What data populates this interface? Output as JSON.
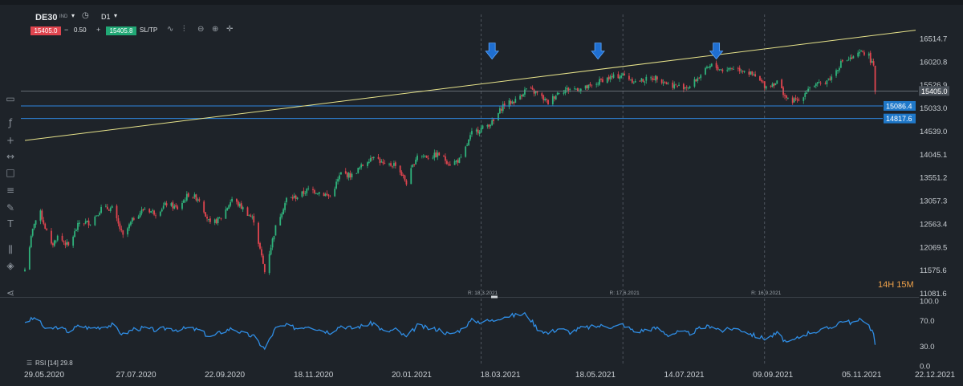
{
  "toolbar": {
    "symbol": "DE30",
    "symbol_suffix": "IND",
    "timeframe": "D1",
    "sell_price": "15405.0",
    "quantity_minus": "−",
    "quantity": "0.50",
    "quantity_plus": "+",
    "buy_price": "15405.8",
    "sltp_label": "SL/TP",
    "icons": [
      "chart-type-icon",
      "indicators-icon",
      "zoom-out-icon",
      "zoom-in-icon",
      "crosshair-icon"
    ]
  },
  "sidebar": {
    "icons": [
      "comment-icon",
      "function-icon",
      "crosshair-plus-icon",
      "ruler-icon",
      "rectangle-icon",
      "fibonacci-icon",
      "pencil-icon",
      "text-icon",
      "settings-sliders-icon",
      "layers-icon",
      "share-icon"
    ]
  },
  "price_axis": {
    "ticks": [
      "16514.7",
      "16020.8",
      "15526.9",
      "15033.0",
      "14539.0",
      "14045.1",
      "13551.2",
      "13057.3",
      "12563.4",
      "12069.5",
      "11575.6",
      "11081.6"
    ],
    "current_price_label": "15405.0",
    "level_labels": [
      "15086.4",
      "14817.6"
    ]
  },
  "time_to_close": "14H 15M",
  "rsi_axis": {
    "ticks": [
      "100.0",
      "70.0",
      "30.0",
      "0.0"
    ],
    "label": "RSI [14] 29.8"
  },
  "date_axis": {
    "ticks": [
      "29.05.2020",
      "27.07.2020",
      "22.09.2020",
      "18.11.2020",
      "20.01.2021",
      "18.03.2021",
      "18.05.2021",
      "14.07.2021",
      "09.09.2021",
      "05.11.2021",
      "22.12.2021"
    ]
  },
  "markers": [
    "R: 18.3.2021",
    "R: 17.6.2021",
    "R: 16.9.2021"
  ],
  "colors": {
    "background": "#1e2329",
    "bull": "#2fb27b",
    "bear": "#e0454f",
    "trendline": "#e6e28a",
    "level_line": "#2e86de",
    "rsi_line": "#2f8de4",
    "arrow": "#1f6fd1",
    "time_to_close": "#f0a24a"
  },
  "chart_data": [
    {
      "type": "candlestick",
      "symbol": "DE30",
      "timeframe": "D1",
      "ylim": [
        11081.6,
        16700
      ],
      "x_start": "29.05.2020",
      "x_end": "22.12.2021",
      "series": [
        {
          "name": "DE30",
          "close_path": [
            [
              "29.05.2020",
              11600
            ],
            [
              "04.06.2020",
              12600
            ],
            [
              "08.06.2020",
              12800
            ],
            [
              "15.06.2020",
              12100
            ],
            [
              "19.06.2020",
              12300
            ],
            [
              "26.06.2020",
              12100
            ],
            [
              "03.07.2020",
              12600
            ],
            [
              "10.07.2020",
              12600
            ],
            [
              "17.07.2020",
              12900
            ],
            [
              "24.07.2020",
              12900
            ],
            [
              "31.07.2020",
              12300
            ],
            [
              "07.08.2020",
              12700
            ],
            [
              "14.08.2020",
              12900
            ],
            [
              "21.08.2020",
              12800
            ],
            [
              "28.08.2020",
              13000
            ],
            [
              "04.09.2020",
              12900
            ],
            [
              "11.09.2020",
              13200
            ],
            [
              "18.09.2020",
              13100
            ],
            [
              "25.09.2020",
              12550
            ],
            [
              "02.10.2020",
              12700
            ],
            [
              "09.10.2020",
              13100
            ],
            [
              "16.10.2020",
              12900
            ],
            [
              "23.10.2020",
              12650
            ],
            [
              "30.10.2020",
              11550
            ],
            [
              "06.11.2020",
              12500
            ],
            [
              "13.11.2020",
              13100
            ],
            [
              "20.11.2020",
              13150
            ],
            [
              "27.11.2020",
              13300
            ],
            [
              "04.12.2020",
              13250
            ],
            [
              "11.12.2020",
              13150
            ],
            [
              "18.12.2020",
              13650
            ],
            [
              "25.12.2020",
              13600
            ],
            [
              "08.01.2021",
              14050
            ],
            [
              "15.01.2021",
              13800
            ],
            [
              "22.01.2021",
              13850
            ],
            [
              "29.01.2021",
              13450
            ],
            [
              "05.02.2021",
              14050
            ],
            [
              "12.02.2021",
              14000
            ],
            [
              "19.02.2021",
              14050
            ],
            [
              "26.02.2021",
              13850
            ],
            [
              "05.03.2021",
              13950
            ],
            [
              "12.03.2021",
              14500
            ],
            [
              "18.03.2021",
              14600
            ],
            [
              "26.03.2021",
              14750
            ],
            [
              "01.04.2021",
              15100
            ],
            [
              "09.04.2021",
              15200
            ],
            [
              "16.04.2021",
              15450
            ],
            [
              "23.04.2021",
              15350
            ],
            [
              "30.04.2021",
              15150
            ],
            [
              "07.05.2021",
              15400
            ],
            [
              "14.05.2021",
              15450
            ],
            [
              "21.05.2021",
              15450
            ],
            [
              "28.05.2021",
              15500
            ],
            [
              "04.06.2021",
              15650
            ],
            [
              "11.06.2021",
              15700
            ],
            [
              "17.06.2021",
              15750
            ],
            [
              "25.06.2021",
              15600
            ],
            [
              "02.07.2021",
              15650
            ],
            [
              "09.07.2021",
              15700
            ],
            [
              "16.07.2021",
              15550
            ],
            [
              "23.07.2021",
              15500
            ],
            [
              "30.07.2021",
              15500
            ],
            [
              "06.08.2021",
              15750
            ],
            [
              "13.08.2021",
              15950
            ],
            [
              "20.08.2021",
              15850
            ],
            [
              "27.08.2021",
              15900
            ],
            [
              "03.09.2021",
              15850
            ],
            [
              "10.09.2021",
              15700
            ],
            [
              "17.09.2021",
              15500
            ],
            [
              "24.09.2021",
              15600
            ],
            [
              "01.10.2021",
              15200
            ],
            [
              "08.10.2021",
              15200
            ],
            [
              "15.10.2021",
              15500
            ],
            [
              "22.10.2021",
              15550
            ],
            [
              "29.10.2021",
              15700
            ],
            [
              "05.11.2021",
              16050
            ],
            [
              "12.11.2021",
              16100
            ],
            [
              "18.11.2021",
              16250
            ],
            [
              "22.11.2021",
              16150
            ],
            [
              "25.11.2021",
              15900
            ],
            [
              "26.11.2021",
              15405
            ]
          ]
        }
      ],
      "horizontal_levels": [
        15405.0,
        15086.4,
        14817.6
      ],
      "trendline": [
        [
          "29.05.2020",
          14350
        ],
        [
          "22.12.2021",
          16700
        ]
      ],
      "arrow_markers": [
        "25.03.2021",
        "01.06.2021",
        "16.08.2021"
      ]
    },
    {
      "type": "line",
      "title": "RSI [14] 29.8",
      "ylim": [
        0,
        100
      ],
      "series": [
        {
          "name": "RSI [14]",
          "values_path": [
            [
              "29.05.2020",
              68
            ],
            [
              "05.06.2020",
              74
            ],
            [
              "12.06.2020",
              55
            ],
            [
              "19.06.2020",
              60
            ],
            [
              "26.06.2020",
              53
            ],
            [
              "03.07.2020",
              62
            ],
            [
              "10.07.2020",
              58
            ],
            [
              "17.07.2020",
              60
            ],
            [
              "24.07.2020",
              63
            ],
            [
              "31.07.2020",
              48
            ],
            [
              "07.08.2020",
              57
            ],
            [
              "14.08.2020",
              58
            ],
            [
              "21.08.2020",
              55
            ],
            [
              "28.08.2020",
              58
            ],
            [
              "04.09.2020",
              56
            ],
            [
              "11.09.2020",
              58
            ],
            [
              "18.09.2020",
              55
            ],
            [
              "25.09.2020",
              44
            ],
            [
              "02.10.2020",
              52
            ],
            [
              "09.10.2020",
              58
            ],
            [
              "16.10.2020",
              50
            ],
            [
              "23.10.2020",
              45
            ],
            [
              "30.10.2020",
              26
            ],
            [
              "06.11.2020",
              58
            ],
            [
              "13.11.2020",
              62
            ],
            [
              "20.11.2020",
              58
            ],
            [
              "27.11.2020",
              62
            ],
            [
              "04.12.2020",
              56
            ],
            [
              "11.12.2020",
              52
            ],
            [
              "18.12.2020",
              62
            ],
            [
              "25.12.2020",
              58
            ],
            [
              "08.01.2021",
              66
            ],
            [
              "15.01.2021",
              52
            ],
            [
              "22.01.2021",
              56
            ],
            [
              "29.01.2021",
              44
            ],
            [
              "05.02.2021",
              62
            ],
            [
              "12.02.2021",
              58
            ],
            [
              "19.02.2021",
              56
            ],
            [
              "26.02.2021",
              48
            ],
            [
              "05.03.2021",
              56
            ],
            [
              "12.03.2021",
              70
            ],
            [
              "18.03.2021",
              68
            ],
            [
              "26.03.2021",
              70
            ],
            [
              "01.04.2021",
              76
            ],
            [
              "09.04.2021",
              78
            ],
            [
              "16.04.2021",
              80
            ],
            [
              "23.04.2021",
              58
            ],
            [
              "30.04.2021",
              50
            ],
            [
              "07.05.2021",
              58
            ],
            [
              "14.05.2021",
              52
            ],
            [
              "21.05.2021",
              58
            ],
            [
              "28.05.2021",
              60
            ],
            [
              "04.06.2021",
              62
            ],
            [
              "11.06.2021",
              60
            ],
            [
              "17.06.2021",
              64
            ],
            [
              "25.06.2021",
              52
            ],
            [
              "02.07.2021",
              56
            ],
            [
              "09.07.2021",
              58
            ],
            [
              "16.07.2021",
              48
            ],
            [
              "23.07.2021",
              52
            ],
            [
              "30.07.2021",
              50
            ],
            [
              "06.08.2021",
              58
            ],
            [
              "13.08.2021",
              62
            ],
            [
              "20.08.2021",
              54
            ],
            [
              "27.08.2021",
              58
            ],
            [
              "03.09.2021",
              54
            ],
            [
              "10.09.2021",
              46
            ],
            [
              "17.09.2021",
              42
            ],
            [
              "24.09.2021",
              50
            ],
            [
              "01.10.2021",
              34
            ],
            [
              "08.10.2021",
              44
            ],
            [
              "15.10.2021",
              52
            ],
            [
              "22.10.2021",
              54
            ],
            [
              "29.10.2021",
              60
            ],
            [
              "05.11.2021",
              70
            ],
            [
              "12.11.2021",
              66
            ],
            [
              "18.11.2021",
              72
            ],
            [
              "22.11.2021",
              62
            ],
            [
              "25.11.2021",
              50
            ],
            [
              "26.11.2021",
              29.8
            ]
          ]
        }
      ],
      "levels": [
        70,
        30
      ]
    }
  ]
}
